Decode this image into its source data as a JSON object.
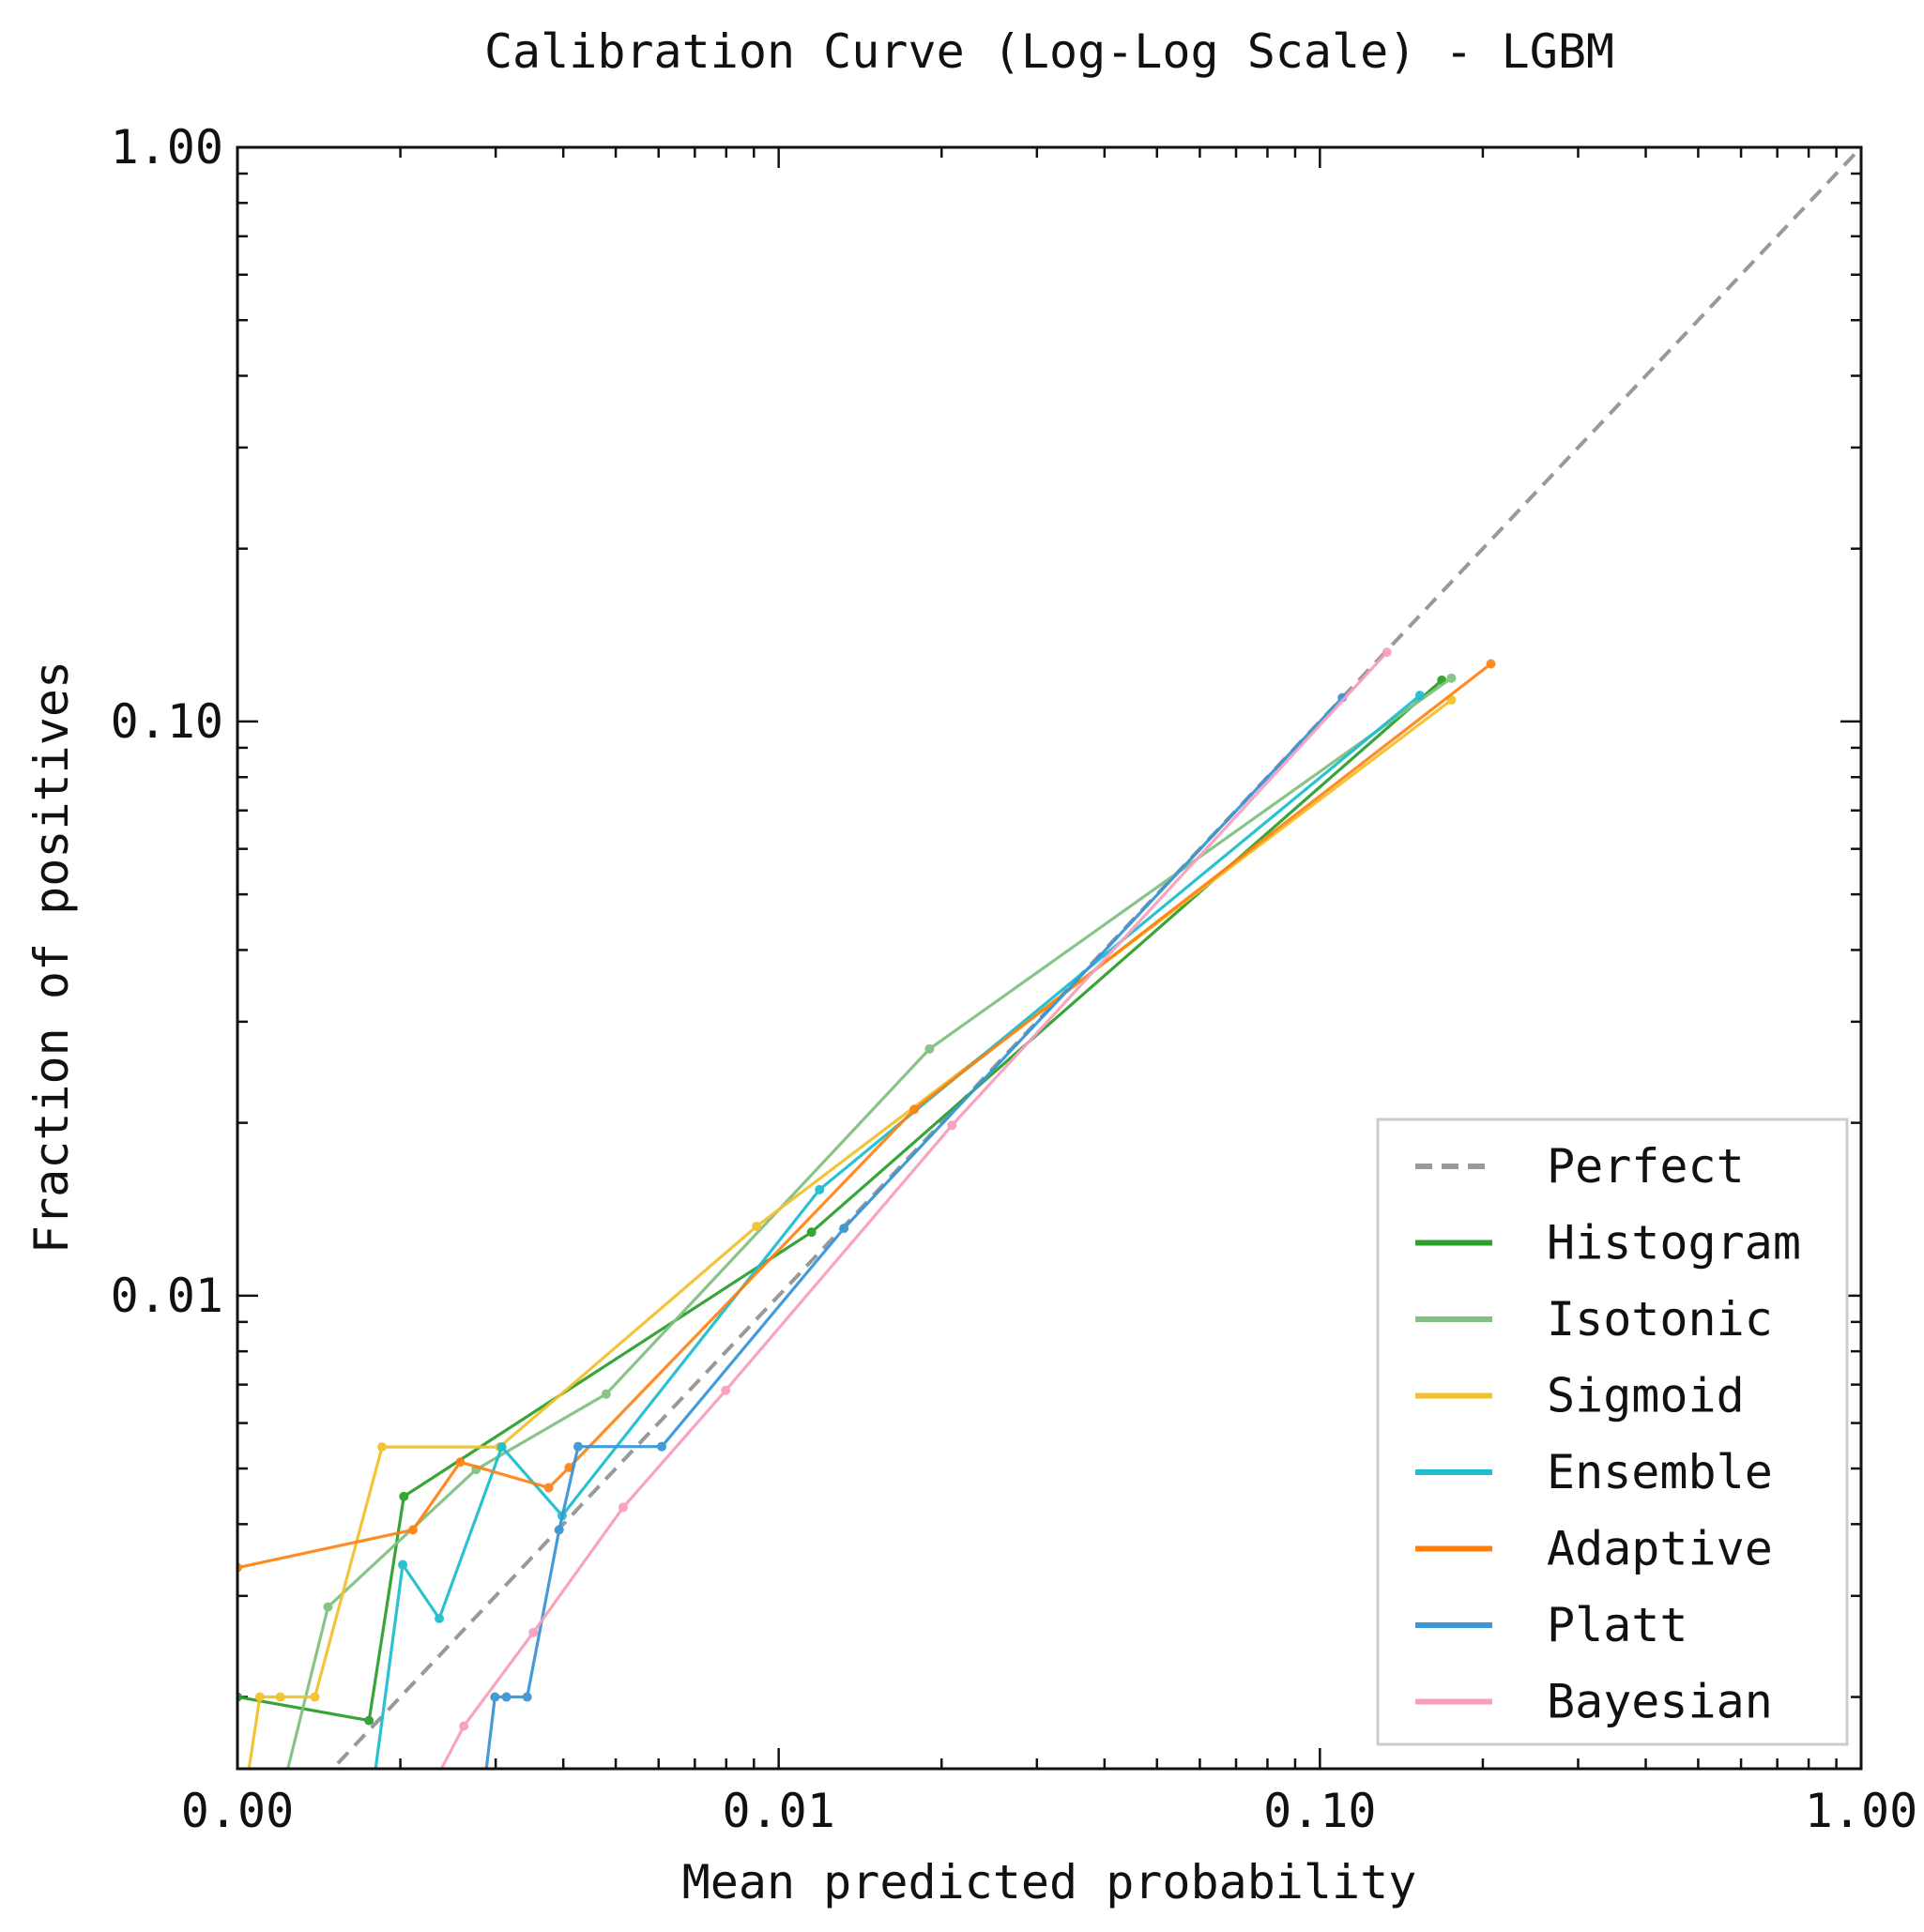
{
  "chart_data": {
    "type": "line",
    "title": "Calibration Curve (Log-Log Scale) - LGBM",
    "xlabel": "Mean predicted probability",
    "ylabel": "Fraction of positives",
    "xscale": "log",
    "yscale": "log",
    "xlim": [
      0.001,
      1.0
    ],
    "ylim": [
      0.0015,
      1.0
    ],
    "xticks": [
      {
        "value": 0.001,
        "label": "0.00"
      },
      {
        "value": 0.01,
        "label": "0.01"
      },
      {
        "value": 0.1,
        "label": "0.10"
      },
      {
        "value": 1.0,
        "label": "1.00"
      }
    ],
    "yticks": [
      {
        "value": 0.01,
        "label": "0.01"
      },
      {
        "value": 0.1,
        "label": "0.10"
      },
      {
        "value": 1.0,
        "label": "1.00"
      }
    ],
    "grid": false,
    "legend_position": "bottom-right",
    "perfect_line": {
      "name": "Perfect",
      "color": "#999999"
    },
    "series": [
      {
        "name": "Histogram",
        "color": "#2ca02c",
        "opacity": 0.95,
        "points": [
          [
            0.001,
            0.002
          ],
          [
            0.00175,
            0.00182
          ],
          [
            0.00203,
            0.00447
          ],
          [
            0.0115,
            0.0129
          ],
          [
            0.168,
            0.118
          ]
        ]
      },
      {
        "name": "Isotonic",
        "color": "#82c181",
        "opacity": 0.95,
        "points": [
          [
            0.00105,
            0.0008
          ],
          [
            0.00147,
            0.00287
          ],
          [
            0.00276,
            0.00498
          ],
          [
            0.0048,
            0.00674
          ],
          [
            0.019,
            0.0269
          ],
          [
            0.175,
            0.119
          ]
        ]
      },
      {
        "name": "Sigmoid",
        "color": "#f2c12e",
        "opacity": 0.95,
        "points": [
          [
            0.00103,
            0.00133
          ],
          [
            0.0011,
            0.002
          ],
          [
            0.0012,
            0.002
          ],
          [
            0.00139,
            0.002
          ],
          [
            0.00185,
            0.00545
          ],
          [
            0.00305,
            0.00545
          ],
          [
            0.0091,
            0.0132
          ],
          [
            0.175,
            0.109
          ]
        ]
      },
      {
        "name": "Ensemble",
        "color": "#1fbfcf",
        "opacity": 0.95,
        "points": [
          [
            0.0017,
            0.001
          ],
          [
            0.00202,
            0.0034
          ],
          [
            0.00236,
            0.00274
          ],
          [
            0.00308,
            0.00545
          ],
          [
            0.00398,
            0.00414
          ],
          [
            0.0119,
            0.0153
          ],
          [
            0.153,
            0.111
          ]
        ]
      },
      {
        "name": "Adaptive",
        "color": "#ff7f0e",
        "opacity": 0.9,
        "points": [
          [
            0.001,
            0.00336
          ],
          [
            0.00211,
            0.00391
          ],
          [
            0.00258,
            0.00513
          ],
          [
            0.00376,
            0.00463
          ],
          [
            0.0041,
            0.00502
          ],
          [
            0.0178,
            0.0211
          ],
          [
            0.207,
            0.126
          ]
        ]
      },
      {
        "name": "Platt",
        "color": "#3a96d6",
        "opacity": 0.95,
        "points": [
          [
            0.00284,
            0.00133
          ],
          [
            0.00299,
            0.002
          ],
          [
            0.00314,
            0.002
          ],
          [
            0.00343,
            0.002
          ],
          [
            0.00393,
            0.00391
          ],
          [
            0.00426,
            0.00546
          ],
          [
            0.00608,
            0.00546
          ],
          [
            0.0132,
            0.0131
          ],
          [
            0.11,
            0.11
          ]
        ]
      },
      {
        "name": "Bayesian",
        "color": "#f99fbe",
        "opacity": 0.95,
        "points": [
          [
            0.0019,
            0.001
          ],
          [
            0.00262,
            0.00178
          ],
          [
            0.00352,
            0.00259
          ],
          [
            0.00516,
            0.00428
          ],
          [
            0.00798,
            0.00684
          ],
          [
            0.0209,
            0.0198
          ],
          [
            0.133,
            0.132
          ]
        ]
      }
    ]
  }
}
